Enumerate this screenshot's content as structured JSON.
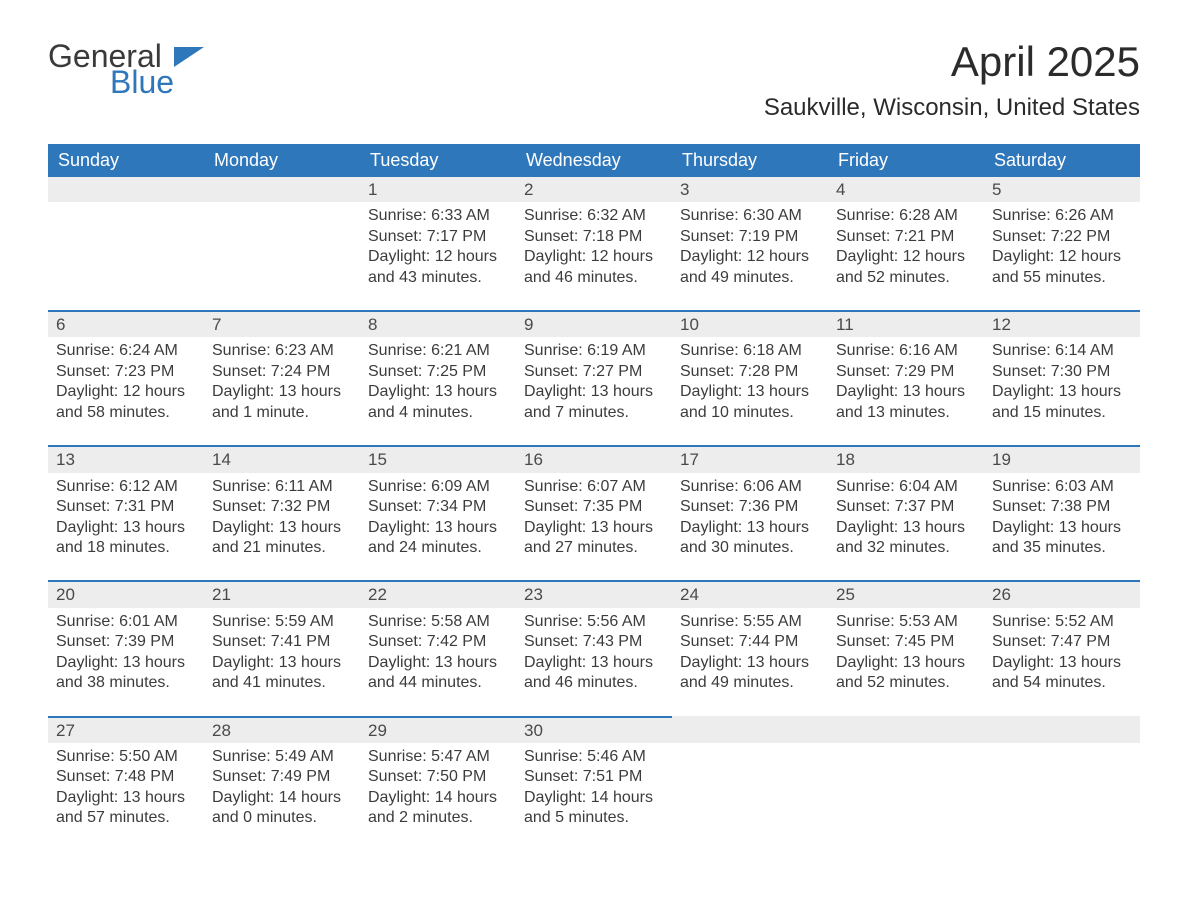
{
  "brand": {
    "word1": "General",
    "word2": "Blue",
    "logo_text_color": "#3a3a3a",
    "logo_blue": "#2f77bb"
  },
  "title": "April 2025",
  "location": "Saukville, Wisconsin, United States",
  "colors": {
    "header_bg": "#2f77bb",
    "header_text": "#ffffff",
    "daynum_bg": "#ededed",
    "daynum_border": "#2f77bb",
    "body_text": "#3c3c3c",
    "page_bg": "#ffffff"
  },
  "columns": [
    "Sunday",
    "Monday",
    "Tuesday",
    "Wednesday",
    "Thursday",
    "Friday",
    "Saturday"
  ],
  "labels": {
    "sunrise": "Sunrise:",
    "sunset": "Sunset:",
    "daylight": "Daylight:"
  },
  "weeks": [
    [
      {
        "empty": true
      },
      {
        "empty": true
      },
      {
        "n": "1",
        "sunrise": "6:33 AM",
        "sunset": "7:17 PM",
        "daylight": "12 hours and 43 minutes."
      },
      {
        "n": "2",
        "sunrise": "6:32 AM",
        "sunset": "7:18 PM",
        "daylight": "12 hours and 46 minutes."
      },
      {
        "n": "3",
        "sunrise": "6:30 AM",
        "sunset": "7:19 PM",
        "daylight": "12 hours and 49 minutes."
      },
      {
        "n": "4",
        "sunrise": "6:28 AM",
        "sunset": "7:21 PM",
        "daylight": "12 hours and 52 minutes."
      },
      {
        "n": "5",
        "sunrise": "6:26 AM",
        "sunset": "7:22 PM",
        "daylight": "12 hours and 55 minutes."
      }
    ],
    [
      {
        "n": "6",
        "sunrise": "6:24 AM",
        "sunset": "7:23 PM",
        "daylight": "12 hours and 58 minutes."
      },
      {
        "n": "7",
        "sunrise": "6:23 AM",
        "sunset": "7:24 PM",
        "daylight": "13 hours and 1 minute."
      },
      {
        "n": "8",
        "sunrise": "6:21 AM",
        "sunset": "7:25 PM",
        "daylight": "13 hours and 4 minutes."
      },
      {
        "n": "9",
        "sunrise": "6:19 AM",
        "sunset": "7:27 PM",
        "daylight": "13 hours and 7 minutes."
      },
      {
        "n": "10",
        "sunrise": "6:18 AM",
        "sunset": "7:28 PM",
        "daylight": "13 hours and 10 minutes."
      },
      {
        "n": "11",
        "sunrise": "6:16 AM",
        "sunset": "7:29 PM",
        "daylight": "13 hours and 13 minutes."
      },
      {
        "n": "12",
        "sunrise": "6:14 AM",
        "sunset": "7:30 PM",
        "daylight": "13 hours and 15 minutes."
      }
    ],
    [
      {
        "n": "13",
        "sunrise": "6:12 AM",
        "sunset": "7:31 PM",
        "daylight": "13 hours and 18 minutes."
      },
      {
        "n": "14",
        "sunrise": "6:11 AM",
        "sunset": "7:32 PM",
        "daylight": "13 hours and 21 minutes."
      },
      {
        "n": "15",
        "sunrise": "6:09 AM",
        "sunset": "7:34 PM",
        "daylight": "13 hours and 24 minutes."
      },
      {
        "n": "16",
        "sunrise": "6:07 AM",
        "sunset": "7:35 PM",
        "daylight": "13 hours and 27 minutes."
      },
      {
        "n": "17",
        "sunrise": "6:06 AM",
        "sunset": "7:36 PM",
        "daylight": "13 hours and 30 minutes."
      },
      {
        "n": "18",
        "sunrise": "6:04 AM",
        "sunset": "7:37 PM",
        "daylight": "13 hours and 32 minutes."
      },
      {
        "n": "19",
        "sunrise": "6:03 AM",
        "sunset": "7:38 PM",
        "daylight": "13 hours and 35 minutes."
      }
    ],
    [
      {
        "n": "20",
        "sunrise": "6:01 AM",
        "sunset": "7:39 PM",
        "daylight": "13 hours and 38 minutes."
      },
      {
        "n": "21",
        "sunrise": "5:59 AM",
        "sunset": "7:41 PM",
        "daylight": "13 hours and 41 minutes."
      },
      {
        "n": "22",
        "sunrise": "5:58 AM",
        "sunset": "7:42 PM",
        "daylight": "13 hours and 44 minutes."
      },
      {
        "n": "23",
        "sunrise": "5:56 AM",
        "sunset": "7:43 PM",
        "daylight": "13 hours and 46 minutes."
      },
      {
        "n": "24",
        "sunrise": "5:55 AM",
        "sunset": "7:44 PM",
        "daylight": "13 hours and 49 minutes."
      },
      {
        "n": "25",
        "sunrise": "5:53 AM",
        "sunset": "7:45 PM",
        "daylight": "13 hours and 52 minutes."
      },
      {
        "n": "26",
        "sunrise": "5:52 AM",
        "sunset": "7:47 PM",
        "daylight": "13 hours and 54 minutes."
      }
    ],
    [
      {
        "n": "27",
        "sunrise": "5:50 AM",
        "sunset": "7:48 PM",
        "daylight": "13 hours and 57 minutes."
      },
      {
        "n": "28",
        "sunrise": "5:49 AM",
        "sunset": "7:49 PM",
        "daylight": "14 hours and 0 minutes."
      },
      {
        "n": "29",
        "sunrise": "5:47 AM",
        "sunset": "7:50 PM",
        "daylight": "14 hours and 2 minutes."
      },
      {
        "n": "30",
        "sunrise": "5:46 AM",
        "sunset": "7:51 PM",
        "daylight": "14 hours and 5 minutes."
      },
      {
        "empty": true
      },
      {
        "empty": true
      },
      {
        "empty": true
      }
    ]
  ]
}
